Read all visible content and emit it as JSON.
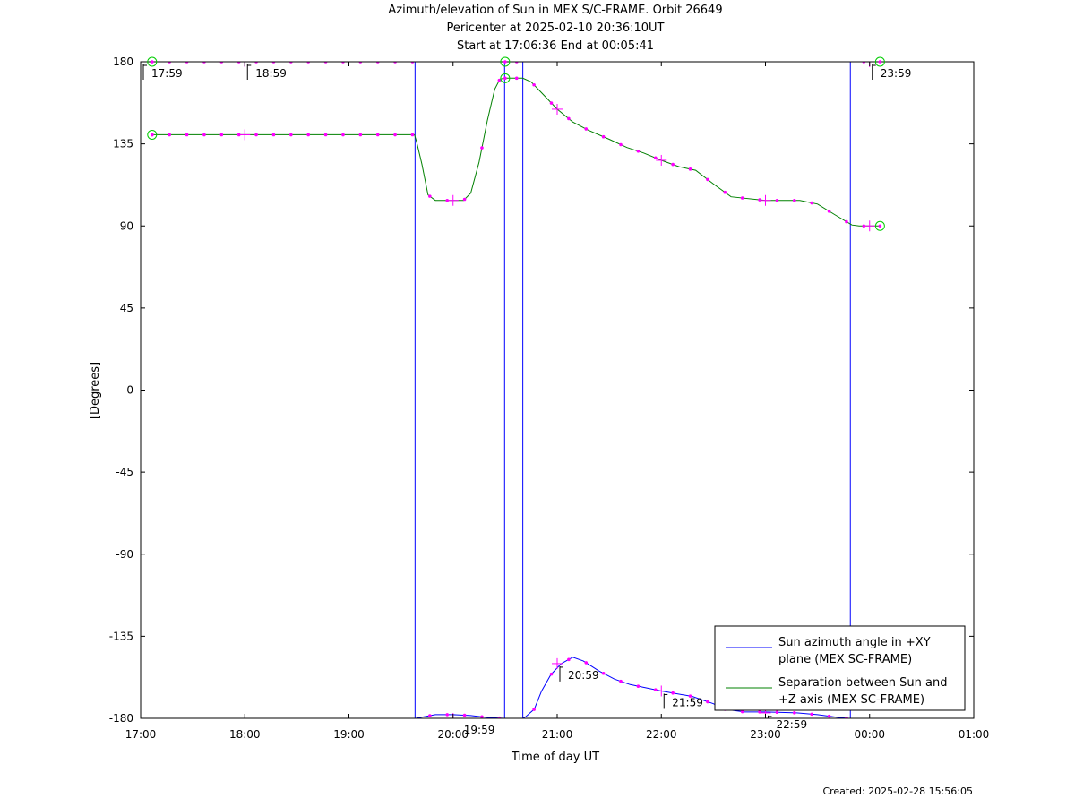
{
  "titles": {
    "line1": "Azimuth/elevation of Sun in MEX S/C-FRAME.  Orbit 26649",
    "line2": "Pericenter at 2025-02-10 20:36:10UT",
    "line3": "Start at 17:06:36 End at 00:05:41"
  },
  "footer": {
    "created": "Created: 2025-02-28 15:56:05"
  },
  "chart_data": {
    "type": "line",
    "xlabel": "Time of day UT",
    "ylabel": "[Degrees]",
    "x_unit": "hours since 17:00 UT",
    "xlim": [
      0,
      8
    ],
    "ylim": [
      -180,
      180
    ],
    "x_ticks": [
      0,
      1,
      2,
      3,
      4,
      5,
      6,
      7,
      8
    ],
    "x_tick_labels": [
      "17:00",
      "18:00",
      "19:00",
      "20:00",
      "21:00",
      "22:00",
      "23:00",
      "00:00",
      "01:00"
    ],
    "y_ticks": [
      180,
      135,
      90,
      45,
      0,
      -45,
      -90,
      -135,
      -180
    ],
    "y_tick_labels": [
      "180",
      "135",
      "90",
      "45",
      "0",
      "-45",
      "-90",
      "-135",
      "-180"
    ],
    "grid": false,
    "legend_position": "bottom-right",
    "series": [
      {
        "name": "Sun azimuth angle in +XY plane (MEX SC-FRAME)",
        "legend_lines": [
          "Sun azimuth angle in +XY",
          "plane (MEX SC-FRAME)"
        ],
        "color": "#0000ff",
        "segments": [
          [
            [
              0.11,
              180
            ],
            [
              2.63,
              180
            ]
          ],
          [
            [
              2.64,
              -180
            ],
            [
              2.83,
              -178
            ],
            [
              3.0,
              -178
            ],
            [
              3.17,
              -178.5
            ],
            [
              3.33,
              -179.5
            ],
            [
              3.49,
              -180
            ]
          ],
          [
            [
              3.5,
              180
            ],
            [
              3.67,
              180
            ]
          ],
          [
            [
              3.67,
              -180
            ],
            [
              3.7,
              -179
            ],
            [
              3.78,
              -175
            ],
            [
              3.85,
              -165
            ],
            [
              3.94,
              -156
            ],
            [
              4.04,
              -150
            ],
            [
              4.15,
              -146.5
            ],
            [
              4.25,
              -148.5
            ],
            [
              4.4,
              -154
            ],
            [
              4.55,
              -158.5
            ],
            [
              4.7,
              -161.5
            ],
            [
              5.0,
              -165
            ],
            [
              5.3,
              -168
            ],
            [
              5.5,
              -172
            ],
            [
              5.6,
              -175
            ],
            [
              5.8,
              -176.5
            ],
            [
              6.0,
              -176.5
            ],
            [
              6.3,
              -177
            ],
            [
              6.5,
              -178
            ],
            [
              6.7,
              -179.5
            ],
            [
              6.8,
              -180
            ]
          ],
          [
            [
              6.82,
              180
            ],
            [
              7.1,
              180
            ]
          ]
        ],
        "vertical_jumps_x": [
          2.635,
          3.495,
          3.67,
          6.815
        ]
      },
      {
        "name": "Separation between Sun and +Z axis (MEX SC-FRAME)",
        "legend_lines": [
          "Separation between Sun and",
          "+Z axis (MEX SC-FRAME)"
        ],
        "color": "#008000",
        "points": [
          [
            0.11,
            140
          ],
          [
            2.63,
            140
          ],
          [
            2.65,
            136
          ],
          [
            2.7,
            124
          ],
          [
            2.76,
            107
          ],
          [
            2.83,
            104
          ],
          [
            3.0,
            104
          ],
          [
            3.1,
            104
          ],
          [
            3.17,
            108
          ],
          [
            3.25,
            125
          ],
          [
            3.33,
            148
          ],
          [
            3.4,
            165
          ],
          [
            3.45,
            170.5
          ],
          [
            3.5,
            171
          ],
          [
            3.67,
            171
          ],
          [
            3.75,
            169
          ],
          [
            3.85,
            163
          ],
          [
            4.0,
            154
          ],
          [
            4.15,
            147
          ],
          [
            4.3,
            142.5
          ],
          [
            4.5,
            137.5
          ],
          [
            4.67,
            133
          ],
          [
            4.83,
            130
          ],
          [
            5.0,
            126
          ],
          [
            5.17,
            122.5
          ],
          [
            5.33,
            120.5
          ],
          [
            5.5,
            113
          ],
          [
            5.67,
            106
          ],
          [
            6.0,
            104
          ],
          [
            6.33,
            104
          ],
          [
            6.5,
            102
          ],
          [
            6.67,
            96
          ],
          [
            6.83,
            90.5
          ],
          [
            6.9,
            90
          ],
          [
            7.1,
            90
          ]
        ]
      }
    ],
    "annotations": [
      {
        "x": 0.0,
        "y": 180,
        "label": "17:59",
        "label_side": "below"
      },
      {
        "x": 1.0,
        "y": 180,
        "label": "18:59",
        "label_side": "below"
      },
      {
        "x": 3.0,
        "y": -180,
        "label": "19:59",
        "label_side": "below"
      },
      {
        "x": 4.0,
        "y": -150,
        "label": "20:59",
        "label_side": "below"
      },
      {
        "x": 5.0,
        "y": -165,
        "label": "21:59",
        "label_side": "below"
      },
      {
        "x": 6.0,
        "y": -177,
        "label": "22:59",
        "label_side": "below"
      },
      {
        "x": 7.0,
        "y": 180,
        "label": "23:59",
        "label_side": "below"
      }
    ],
    "circle_markers": [
      {
        "x": 0.11,
        "y": 180
      },
      {
        "x": 0.11,
        "y": 140
      },
      {
        "x": 3.5,
        "y": 180
      },
      {
        "x": 3.5,
        "y": 171
      },
      {
        "x": 7.1,
        "y": 180
      },
      {
        "x": 7.1,
        "y": 90
      }
    ],
    "marker_color": "#ff00ff",
    "marker_spacing_hours": 0.1667
  }
}
